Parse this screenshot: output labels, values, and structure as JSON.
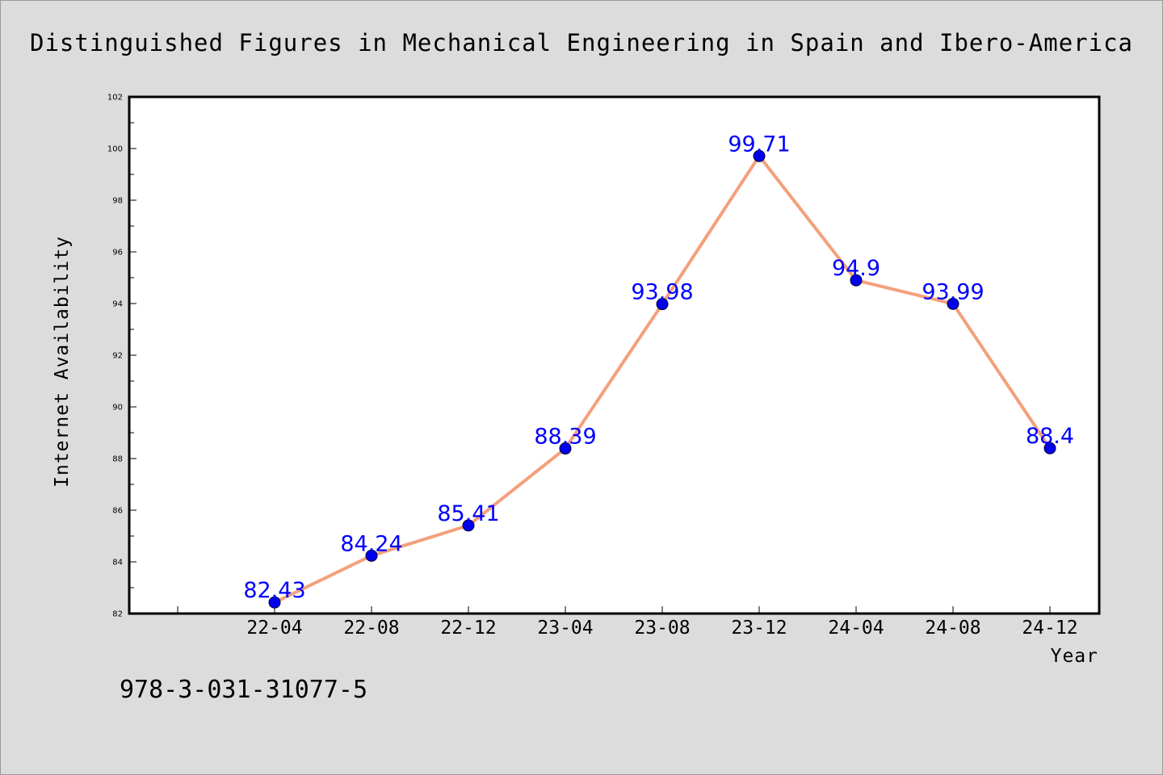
{
  "chart_data": {
    "type": "line",
    "title": "Distinguished Figures in Mechanical Engineering in Spain and Ibero-America",
    "xlabel": "Year",
    "ylabel": "Internet Availability",
    "categories": [
      "22-04",
      "22-08",
      "22-12",
      "23-04",
      "23-08",
      "23-12",
      "24-04",
      "24-08",
      "24-12"
    ],
    "series": [
      {
        "values": [
          82.43,
          84.24,
          85.41,
          88.39,
          93.98,
          99.71,
          94.9,
          93.99,
          88.4
        ],
        "labels": [
          "82.43",
          "84.24",
          "85.41",
          "88.39",
          "93.98",
          "99.71",
          "94.9",
          "93.99",
          "88.4"
        ]
      }
    ],
    "ylim": [
      82,
      102
    ],
    "yticks": [
      "82",
      "84",
      "86",
      "88",
      "90",
      "92",
      "94",
      "96",
      "98",
      "100",
      "102"
    ],
    "grid": false,
    "colors": {
      "line": "#f4a07c",
      "marker": "#0000ee",
      "data_label": "#0000ff"
    }
  },
  "footer": {
    "isbn": "978-3-031-31077-5"
  }
}
